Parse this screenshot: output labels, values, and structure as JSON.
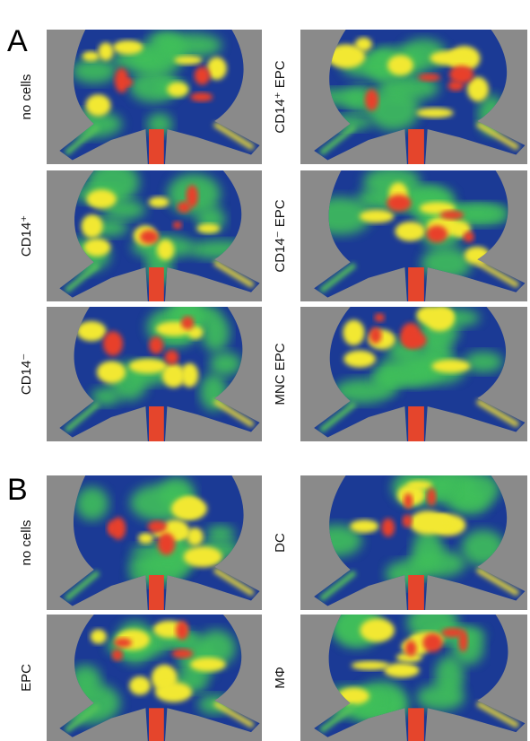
{
  "figure": {
    "panels": [
      {
        "label": "A",
        "images": [
          {
            "label": "no cells"
          },
          {
            "label": "CD14⁺ EPC"
          },
          {
            "label": "CD14⁺"
          },
          {
            "label": "CD14⁻ EPC"
          },
          {
            "label": "CD14⁻"
          },
          {
            "label": "MNC EPC"
          }
        ]
      },
      {
        "label": "B",
        "images": [
          {
            "label": "no cells"
          },
          {
            "label": "DC"
          },
          {
            "label": "EPC"
          },
          {
            "label": "MΦ"
          }
        ]
      }
    ]
  }
}
